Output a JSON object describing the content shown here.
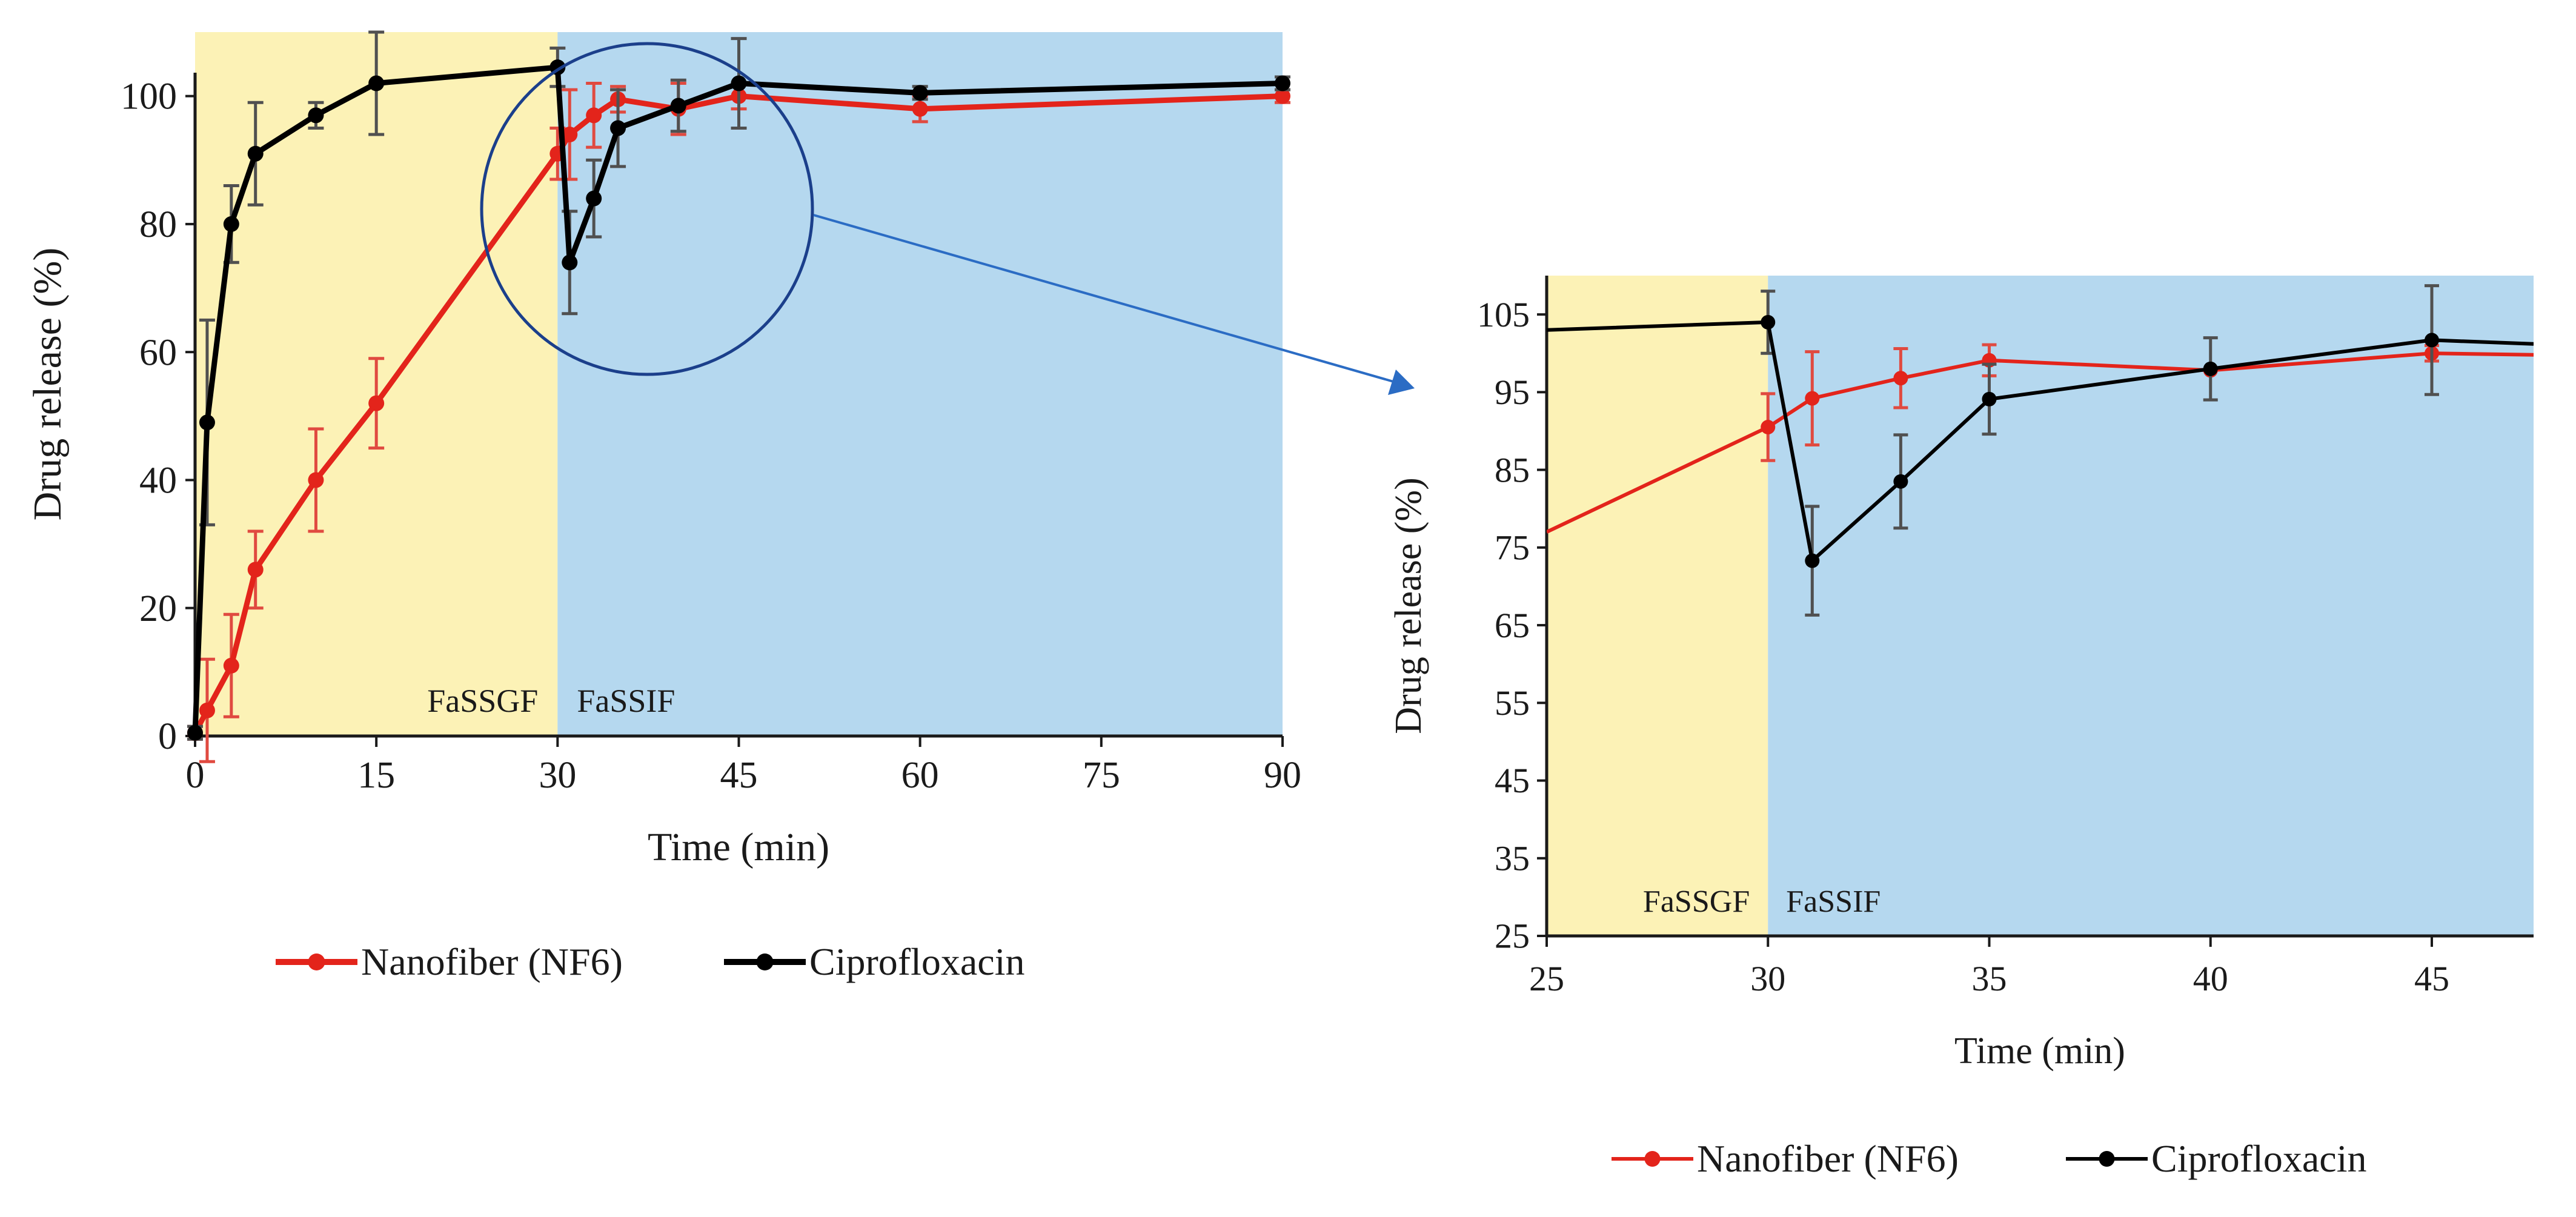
{
  "colors": {
    "fassgf_bg": "#fcf2b6",
    "fassif_bg": "#b5d8ef",
    "nanofiber": "#e3241b",
    "cipro": "#000000",
    "error_bar": "#505050",
    "callout": "#1b3f8b"
  },
  "chart_data": [
    {
      "id": "full",
      "type": "line",
      "xlabel": "Time (min)",
      "ylabel": "Drug release (%)",
      "xlim": [
        0,
        90
      ],
      "ylim": [
        0,
        110
      ],
      "xticks": [
        0,
        15,
        30,
        45,
        60,
        75,
        90
      ],
      "yticks": [
        0,
        20,
        40,
        60,
        80,
        100
      ],
      "phase_change_x": 30,
      "phase_labels": [
        "FaSSGF",
        "FaSSIF"
      ],
      "series": [
        {
          "name": "Nanofiber (NF6)",
          "x": [
            0,
            1,
            3,
            5,
            10,
            15,
            30,
            31,
            33,
            35,
            40,
            45,
            60,
            90
          ],
          "y": [
            0.5,
            4,
            11,
            26,
            40,
            52,
            91,
            94,
            97,
            99.5,
            98,
            100,
            98,
            100
          ],
          "err": [
            1,
            8,
            8,
            6,
            8,
            7,
            4,
            7,
            5,
            2,
            4,
            2,
            2,
            1
          ]
        },
        {
          "name": "Ciprofloxacin",
          "x": [
            0,
            1,
            3,
            5,
            10,
            15,
            30,
            31,
            33,
            35,
            40,
            45,
            60,
            90
          ],
          "y": [
            0.5,
            49,
            80,
            91,
            97,
            102,
            104.5,
            74,
            84,
            95,
            98.5,
            102,
            100.5,
            102
          ],
          "err": [
            1,
            16,
            6,
            8,
            2,
            8,
            3,
            8,
            6,
            6,
            4,
            7,
            1,
            1
          ]
        }
      ]
    },
    {
      "id": "zoom",
      "type": "line",
      "xlabel": "Time (min)",
      "ylabel": "Drug release (%)",
      "xlim": [
        25,
        47.3
      ],
      "ylim": [
        25,
        110
      ],
      "xticks": [
        25,
        30,
        35,
        40,
        45
      ],
      "yticks": [
        25,
        35,
        45,
        55,
        65,
        75,
        85,
        95,
        105
      ],
      "phase_change_x": 30,
      "phase_labels": [
        "FaSSGF",
        "FaSSIF"
      ],
      "series": [
        {
          "name": "Nanofiber (NF6)",
          "x": [
            25,
            30,
            31,
            33,
            35,
            40,
            45,
            47.3
          ],
          "y": [
            77,
            90.5,
            94.2,
            96.8,
            99.1,
            97.8,
            100,
            99.8
          ],
          "err": [
            null,
            4.3,
            6,
            3.8,
            2,
            null,
            1,
            null
          ]
        },
        {
          "name": "Ciprofloxacin",
          "x": [
            25,
            30,
            31,
            33,
            35,
            40,
            45,
            47.3
          ],
          "y": [
            103,
            104,
            73.3,
            83.5,
            94.1,
            98,
            101.7,
            101.2
          ],
          "err": [
            null,
            4,
            7,
            6,
            4.5,
            4,
            7,
            null
          ]
        }
      ]
    }
  ]
}
